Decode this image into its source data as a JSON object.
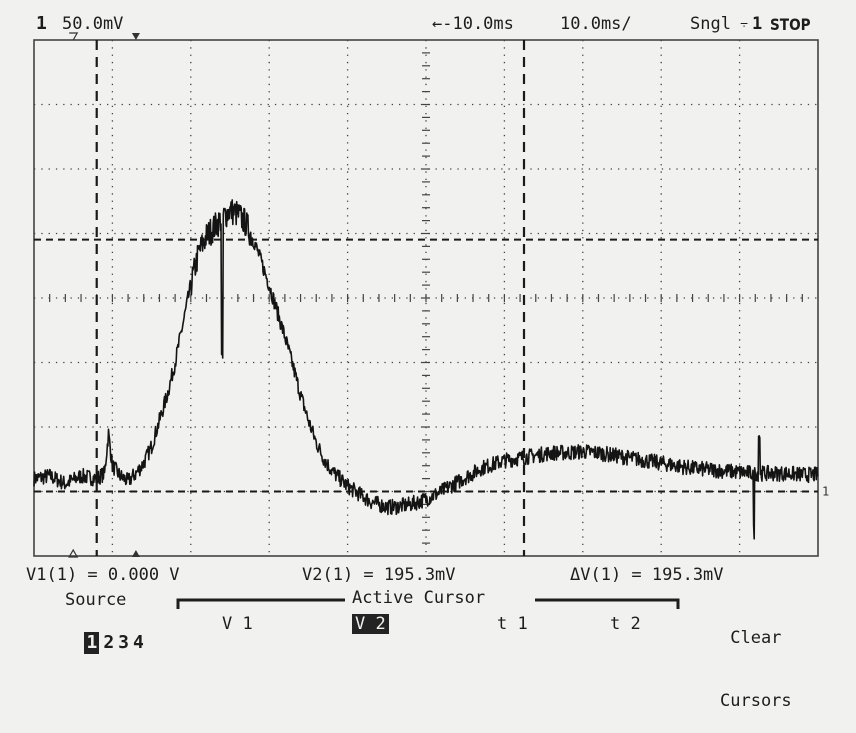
{
  "top_bar": {
    "channel_num": "1",
    "volts_per_div": "50.0mV",
    "delay": "←-10.0ms",
    "time_per_div": "10.0ms/",
    "trigger_mode": "Sngl",
    "trigger_icon": "trigger-edge-icon",
    "trigger_source": "1",
    "run_state": "STOP"
  },
  "readouts": {
    "v1": "V1(1) = 0.000 V",
    "v2": "V2(1) = 195.3mV",
    "dv": "ΔV(1) = 195.3mV"
  },
  "softkeys": {
    "source_label": "Source",
    "source_channels": [
      "1",
      "2",
      "3",
      "4"
    ],
    "source_selected": "1",
    "active_cursor_label": "Active Cursor",
    "v1": "V 1",
    "v2": "V 2",
    "v2_selected": true,
    "t1": "t 1",
    "t2": "t 2",
    "clear_line1": "Clear",
    "clear_line2": "Cursors"
  },
  "screen": {
    "divisions_x": 10,
    "divisions_y": 8,
    "trace_color": "#141414",
    "grid_color": "#444444"
  },
  "chart_data": {
    "type": "line",
    "x_units": "ms",
    "y_units": "mV",
    "x_range_ms": [
      -60,
      40
    ],
    "y_range_mV": [
      -50,
      350
    ],
    "cursor_v1_mV": 0,
    "cursor_v2_mV": 195.3,
    "cursor_t1_ms": -52,
    "cursor_t2_ms": 2.5,
    "series": [
      {
        "points_ms_mV": [
          [
            -60,
            10
          ],
          [
            -58,
            12
          ],
          [
            -56,
            6
          ],
          [
            -54,
            12
          ],
          [
            -52,
            10
          ],
          [
            -51,
            14
          ],
          [
            -50.5,
            45
          ],
          [
            -50,
            20
          ],
          [
            -49,
            12
          ],
          [
            -48,
            8
          ],
          [
            -47,
            14
          ],
          [
            -46,
            22
          ],
          [
            -45,
            35
          ],
          [
            -44,
            55
          ],
          [
            -43,
            75
          ],
          [
            -42,
            100
          ],
          [
            -41,
            130
          ],
          [
            -40,
            160
          ],
          [
            -39,
            185
          ],
          [
            -38,
            198
          ],
          [
            -37,
            205
          ],
          [
            -36,
            212
          ],
          [
            -35,
            218
          ],
          [
            -34,
            215
          ],
          [
            -33,
            208
          ],
          [
            -32,
            195
          ],
          [
            -31,
            178
          ],
          [
            -30,
            160
          ],
          [
            -29,
            140
          ],
          [
            -28,
            120
          ],
          [
            -27,
            98
          ],
          [
            -26,
            75
          ],
          [
            -25,
            55
          ],
          [
            -24,
            38
          ],
          [
            -23,
            25
          ],
          [
            -22,
            16
          ],
          [
            -21,
            10
          ],
          [
            -20,
            4
          ],
          [
            -19,
            0
          ],
          [
            -18,
            -4
          ],
          [
            -17,
            -8
          ],
          [
            -16,
            -10
          ],
          [
            -15,
            -12
          ],
          [
            -14,
            -12
          ],
          [
            -13,
            -11
          ],
          [
            -12,
            -10
          ],
          [
            -11,
            -8
          ],
          [
            -10,
            -6
          ],
          [
            -9,
            -3
          ],
          [
            -8,
            0
          ],
          [
            -7,
            4
          ],
          [
            -6,
            7
          ],
          [
            -5,
            11
          ],
          [
            -4,
            14
          ],
          [
            -3,
            18
          ],
          [
            -2,
            20
          ],
          [
            -1,
            22
          ],
          [
            0,
            24
          ],
          [
            2,
            26
          ],
          [
            4,
            28
          ],
          [
            6,
            30
          ],
          [
            8,
            30
          ],
          [
            10,
            31
          ],
          [
            12,
            30
          ],
          [
            14,
            28
          ],
          [
            16,
            26
          ],
          [
            18,
            24
          ],
          [
            20,
            22
          ],
          [
            22,
            20
          ],
          [
            24,
            18
          ],
          [
            26,
            17
          ],
          [
            28,
            16
          ],
          [
            30,
            15
          ],
          [
            32,
            14
          ],
          [
            34,
            14
          ],
          [
            36,
            14
          ],
          [
            38,
            13
          ],
          [
            40,
            13
          ]
        ]
      }
    ]
  }
}
